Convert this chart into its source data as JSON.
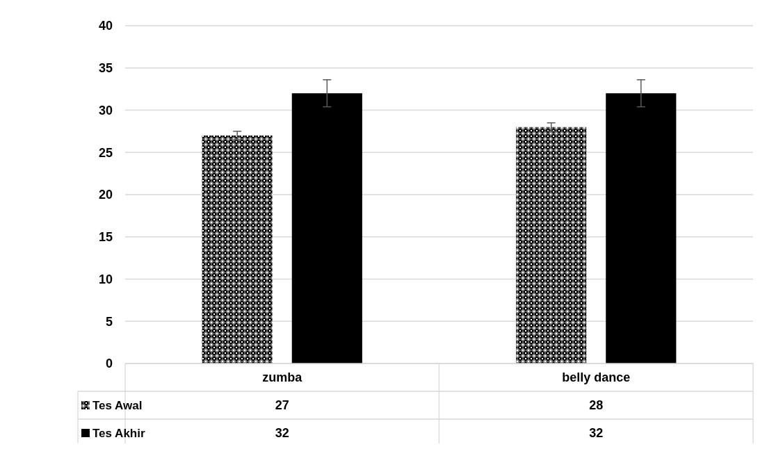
{
  "chart_data": {
    "type": "bar",
    "categories": [
      "zumba",
      "belly dance"
    ],
    "series": [
      {
        "name": "Tes Awal",
        "color": "#7f7f7f",
        "values": [
          27,
          28
        ],
        "errors": [
          0.5,
          0.5
        ]
      },
      {
        "name": "Tes Akhir",
        "color": "#000000",
        "values": [
          32,
          32
        ],
        "errors": [
          1.6,
          1.6
        ]
      }
    ],
    "ylim": [
      0,
      40
    ],
    "yticks": [
      0,
      5,
      10,
      15,
      20,
      25,
      30,
      35,
      40
    ],
    "grid": "y",
    "legend": "bottom",
    "data_labels": true
  }
}
